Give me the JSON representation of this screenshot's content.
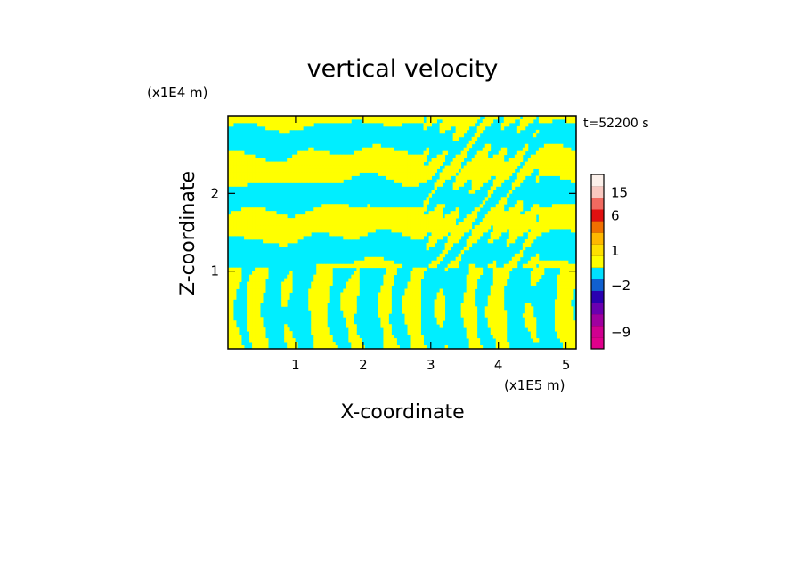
{
  "chart_data": {
    "type": "heatmap",
    "title": "vertical velocity",
    "time_label": "t=52200 s",
    "xlabel": "X-coordinate",
    "ylabel": "Z-coordinate",
    "x_unit": "(x1E5 m)",
    "y_unit": "(x1E4 m)",
    "xlim": [
      0,
      5.15
    ],
    "ylim": [
      0,
      3.0
    ],
    "x_ticks": [
      1,
      2,
      3,
      4,
      5
    ],
    "x_tick_labels": [
      "1",
      "2",
      "3",
      "4",
      "5"
    ],
    "y_ticks": [
      1,
      2
    ],
    "y_tick_labels": [
      "1",
      "2"
    ],
    "field_colors": {
      "positive": "#ffff00",
      "negative": "#00eeff"
    },
    "colorbar": {
      "levels": [
        {
          "value": -12,
          "color": "#e0008c"
        },
        {
          "value": -9,
          "color": "#d00090"
        },
        {
          "value": -6,
          "color": "#a000a0"
        },
        {
          "value": -4,
          "color": "#6a00b0"
        },
        {
          "value": -3,
          "color": "#2a00b0"
        },
        {
          "value": -2,
          "color": "#1060d0"
        },
        {
          "value": -1,
          "color": "#00e0ff"
        },
        {
          "value": 0,
          "color": "#ffff00"
        },
        {
          "value": 1,
          "color": "#ffe000"
        },
        {
          "value": 2,
          "color": "#ffb800"
        },
        {
          "value": 3,
          "color": "#f07000"
        },
        {
          "value": 6,
          "color": "#e01010"
        },
        {
          "value": 10,
          "color": "#f06a60"
        },
        {
          "value": 15,
          "color": "#f8c8c0"
        },
        {
          "value": 20,
          "color": "#fcf0ea"
        }
      ],
      "labels": [
        {
          "value": 15,
          "text": "15"
        },
        {
          "value": 6,
          "text": "6"
        },
        {
          "value": 1,
          "text": "1"
        },
        {
          "value": -2,
          "text": "−2"
        },
        {
          "value": -9,
          "text": "−9"
        }
      ]
    }
  }
}
